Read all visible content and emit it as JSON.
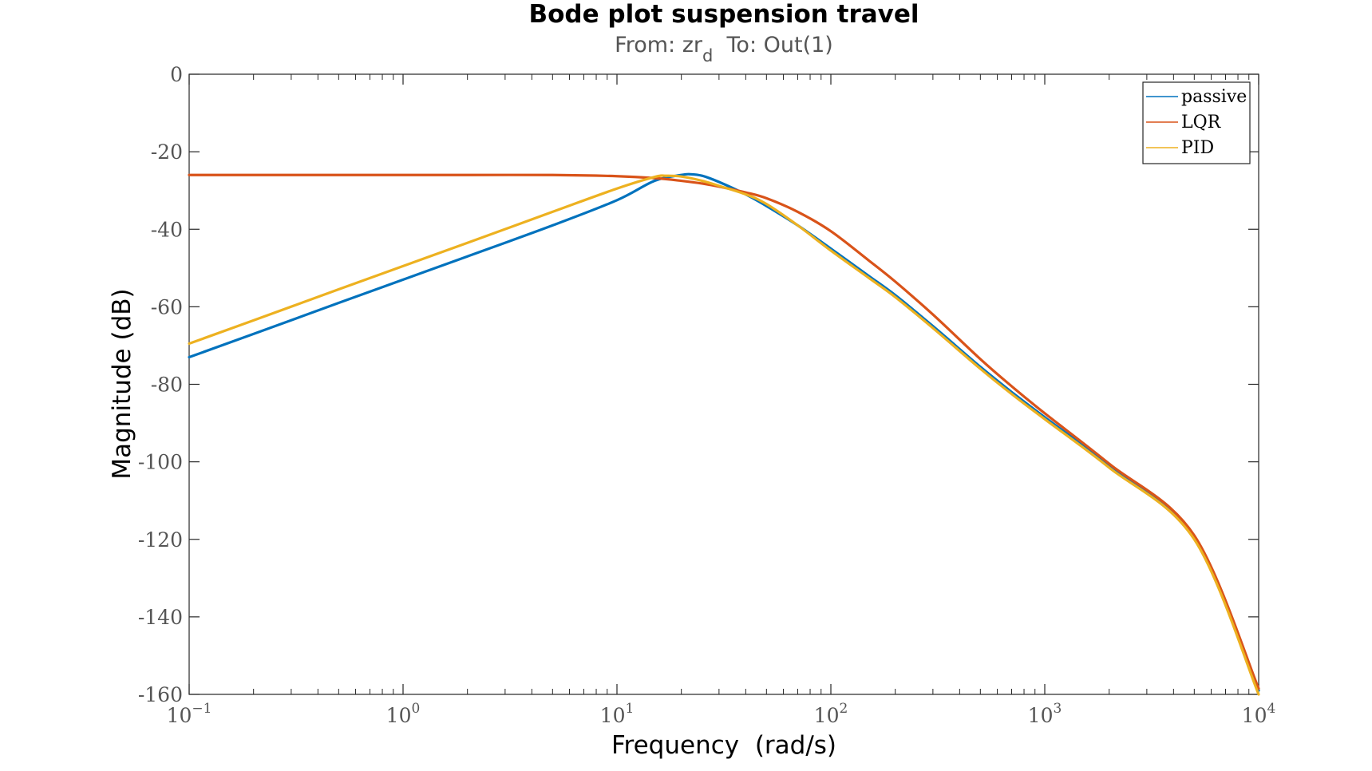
{
  "chart_data": {
    "type": "line",
    "title": "Bode plot suspension travel",
    "subtitle": {
      "prefix": "From: zr",
      "subscript": "d",
      "suffix": "  To: Out(1)"
    },
    "xlabel": "Frequency  (rad/s)",
    "ylabel": "Magnitude (dB)",
    "xscale": "log",
    "xlim": [
      0.1,
      10000
    ],
    "ylim": [
      -160,
      0
    ],
    "xticks": [
      {
        "base": "10",
        "exp": "−1",
        "value": 0.1
      },
      {
        "base": "10",
        "exp": "0",
        "value": 1
      },
      {
        "base": "10",
        "exp": "1",
        "value": 10
      },
      {
        "base": "10",
        "exp": "2",
        "value": 100
      },
      {
        "base": "10",
        "exp": "3",
        "value": 1000
      },
      {
        "base": "10",
        "exp": "4",
        "value": 10000
      }
    ],
    "yticks": [
      {
        "label": "0",
        "value": 0
      },
      {
        "label": "-20",
        "value": -20
      },
      {
        "label": "-40",
        "value": -40
      },
      {
        "label": "-60",
        "value": -60
      },
      {
        "label": "-80",
        "value": -80
      },
      {
        "label": "-100",
        "value": -100
      },
      {
        "label": "-120",
        "value": -120
      },
      {
        "label": "-140",
        "value": -140
      },
      {
        "label": "-160",
        "value": -160
      }
    ],
    "grid": false,
    "legend": "top-right",
    "series": [
      {
        "name": "passive",
        "color": "#0072BD",
        "x": [
          0.1,
          0.2,
          0.5,
          1,
          2,
          5,
          10,
          15,
          20,
          22,
          25,
          30,
          40,
          50,
          70,
          100,
          150,
          200,
          300,
          500,
          700,
          1000,
          2000,
          5000,
          10000
        ],
        "y": [
          -73.0,
          -67.0,
          -59.0,
          -53.0,
          -47.0,
          -39.0,
          -32.5,
          -27.5,
          -26.0,
          -25.8,
          -26.2,
          -27.8,
          -31.0,
          -34.0,
          -39.0,
          -45.0,
          -52.0,
          -57.0,
          -65.0,
          -75.5,
          -82.0,
          -88.5,
          -101.0,
          -119.5,
          -159.0
        ]
      },
      {
        "name": "LQR",
        "color": "#D95319",
        "x": [
          0.1,
          0.2,
          0.5,
          1,
          2,
          5,
          10,
          15,
          20,
          25,
          30,
          40,
          50,
          70,
          100,
          150,
          200,
          300,
          500,
          700,
          1000,
          2000,
          5000,
          10000
        ],
        "y": [
          -26.0,
          -26.0,
          -26.0,
          -26.0,
          -26.0,
          -26.0,
          -26.3,
          -26.8,
          -27.5,
          -28.2,
          -29.0,
          -30.5,
          -32.0,
          -35.5,
          -40.5,
          -48.0,
          -53.5,
          -62.0,
          -73.5,
          -80.5,
          -87.5,
          -100.5,
          -119.0,
          -158.5
        ]
      },
      {
        "name": "PID",
        "color": "#EDB120",
        "x": [
          0.1,
          0.2,
          0.5,
          1,
          2,
          5,
          10,
          15,
          17,
          20,
          25,
          30,
          40,
          50,
          70,
          100,
          150,
          200,
          300,
          500,
          700,
          1000,
          2000,
          5000,
          10000
        ],
        "y": [
          -69.5,
          -63.5,
          -55.5,
          -49.5,
          -43.5,
          -35.5,
          -29.5,
          -26.5,
          -26.2,
          -26.4,
          -27.5,
          -28.8,
          -31.0,
          -33.5,
          -39.0,
          -45.5,
          -52.5,
          -57.5,
          -65.5,
          -76.0,
          -82.5,
          -89.0,
          -101.5,
          -120.0,
          -160.0
        ]
      }
    ]
  }
}
